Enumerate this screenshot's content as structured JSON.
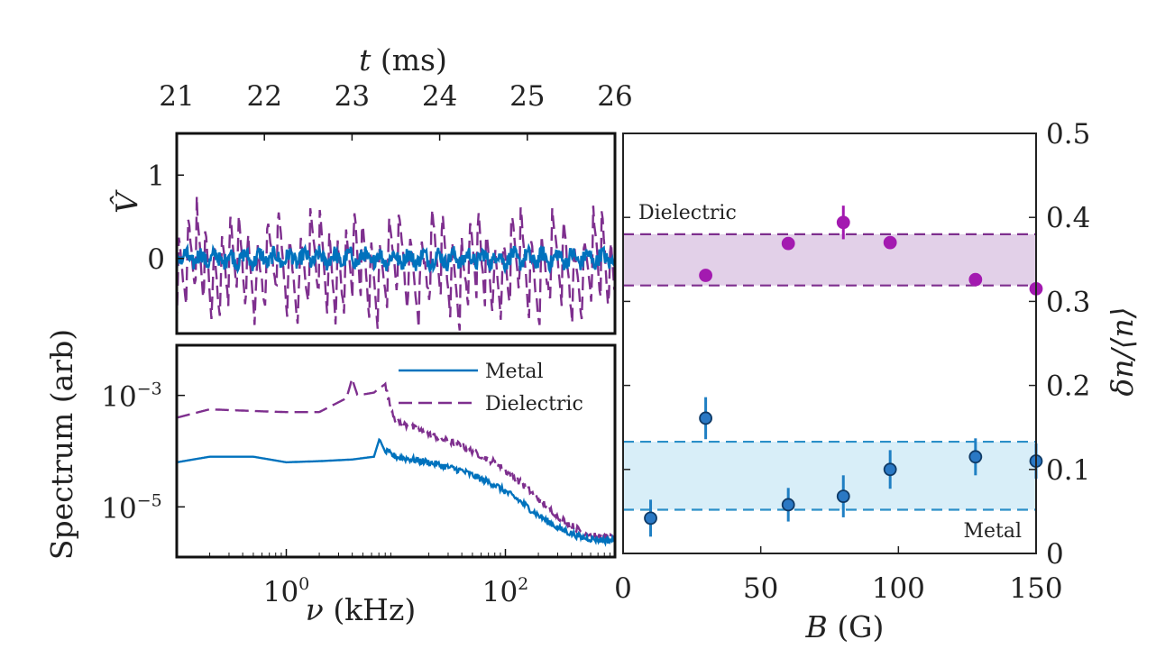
{
  "chart_data": [
    {
      "id": "voltage",
      "type": "line",
      "top_axis_label": "t (ms)",
      "top_axis_symbol": "t",
      "top_axis_unit": "(ms)",
      "xlim": [
        21,
        26
      ],
      "xticks": [
        21,
        22,
        23,
        24,
        25,
        26
      ],
      "ylabel": "V̂",
      "ylim": [
        -0.9,
        1.5
      ],
      "yticks": [
        0,
        1
      ],
      "series": [
        {
          "name": "Metal",
          "style": "solid",
          "color": "#0072bd",
          "mean": 0,
          "amplitude": 0.12
        },
        {
          "name": "Dielectric",
          "style": "dashed",
          "color": "#7e2f8e",
          "mean": 0,
          "amplitude": 0.95
        }
      ]
    },
    {
      "id": "spectrum",
      "type": "line",
      "xscale": "log",
      "yscale": "log",
      "xlabel": "ν (kHz)",
      "xlabel_symbol": "ν",
      "xlabel_unit": "(kHz)",
      "ylabel": "Spectrum (arb)",
      "xlim_log10": [
        -1,
        3
      ],
      "ylim_log10": [
        -5.9,
        -2.1
      ],
      "xtick_labels": [
        {
          "base": "10",
          "exp": "0",
          "log10": 0
        },
        {
          "base": "10",
          "exp": "2",
          "log10": 2
        }
      ],
      "ytick_labels": [
        {
          "base": "10",
          "exp": "−3",
          "log10": -3
        },
        {
          "base": "10",
          "exp": "−5",
          "log10": -5
        }
      ],
      "legend": [
        {
          "name": "Metal",
          "style": "solid",
          "color": "#0072bd"
        },
        {
          "name": "Dielectric",
          "style": "dashed",
          "color": "#7e2f8e"
        }
      ],
      "series": [
        {
          "name": "Metal",
          "color": "#0072bd",
          "log10_nu": [
            -1,
            -0.7,
            -0.3,
            0,
            0.3,
            0.6,
            0.8,
            0.85,
            0.9,
            1.0,
            1.3,
            1.6,
            1.9,
            2.1,
            2.3,
            2.5,
            2.7,
            2.9,
            3.0
          ],
          "log10_S": [
            -4.2,
            -4.1,
            -4.1,
            -4.2,
            -4.18,
            -4.15,
            -4.1,
            -3.78,
            -4.0,
            -4.1,
            -4.2,
            -4.35,
            -4.6,
            -4.85,
            -5.15,
            -5.4,
            -5.55,
            -5.6,
            -5.6
          ]
        },
        {
          "name": "Dielectric",
          "color": "#7e2f8e",
          "log10_nu": [
            -1,
            -0.7,
            -0.3,
            0,
            0.3,
            0.55,
            0.6,
            0.65,
            0.8,
            0.9,
            0.95,
            1.0,
            1.3,
            1.6,
            1.9,
            2.1,
            2.3,
            2.5,
            2.7,
            2.9,
            3.0
          ],
          "log10_S": [
            -3.4,
            -3.25,
            -3.28,
            -3.3,
            -3.3,
            -3.05,
            -2.7,
            -3.0,
            -2.95,
            -2.8,
            -3.2,
            -3.45,
            -3.7,
            -3.9,
            -4.2,
            -4.5,
            -4.85,
            -5.2,
            -5.45,
            -5.55,
            -5.55
          ]
        }
      ]
    },
    {
      "id": "fluctuation",
      "type": "scatter",
      "xlabel": "B (G)",
      "xlabel_symbol": "B",
      "xlabel_unit": "(G)",
      "ylabel": "δn/⟨n⟩",
      "xlim": [
        0,
        150
      ],
      "ylim": [
        0,
        0.5
      ],
      "xticks": [
        0,
        50,
        100,
        150
      ],
      "yticks": [
        "0",
        "0.1",
        "0.2",
        "0.3",
        "0.4",
        "0.5"
      ],
      "annotations": [
        "Dielectric",
        "Metal"
      ],
      "bands": [
        {
          "name": "Dielectric",
          "low": 0.319,
          "high": 0.38,
          "color": "#7e2f8e",
          "fill": "#e2d0e8"
        },
        {
          "name": "Metal",
          "low": 0.052,
          "high": 0.133,
          "color": "#2b8fc8",
          "fill": "#d8eef8"
        }
      ],
      "series": [
        {
          "name": "Dielectric",
          "color": "#a31ab0",
          "edge": "#a31ab0",
          "x": [
            30,
            60,
            80,
            97,
            128,
            150
          ],
          "y": [
            0.331,
            0.369,
            0.394,
            0.37,
            0.326,
            0.315
          ],
          "err": [
            0,
            0,
            0.02,
            0,
            0,
            0
          ]
        },
        {
          "name": "Metal",
          "color": "#2a78c4",
          "edge": "#0f3a66",
          "errcolor": "#1f7fc3",
          "x": [
            10,
            30,
            60,
            80,
            97,
            128,
            150
          ],
          "y": [
            0.042,
            0.161,
            0.058,
            0.068,
            0.1,
            0.115,
            0.11
          ],
          "err": [
            0.022,
            0.025,
            0.02,
            0.025,
            0.023,
            0.022,
            0.021
          ]
        }
      ]
    }
  ]
}
